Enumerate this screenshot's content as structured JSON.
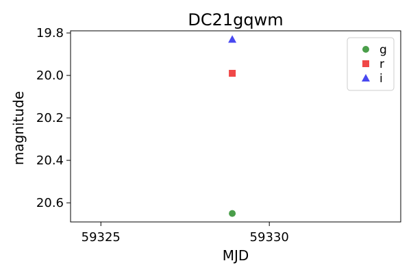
{
  "chart_data": {
    "type": "scatter",
    "title": "DC21gqwm",
    "xlabel": "MJD",
    "ylabel": "magnitude",
    "xlim": [
      59324.1,
      59333.9
    ],
    "ylim": [
      20.69,
      19.79
    ],
    "y_inverted": true,
    "grid": false,
    "legend_position": "top-right",
    "x_ticks": [
      59325,
      59330
    ],
    "y_ticks": [
      19.8,
      20.0,
      20.2,
      20.4,
      20.6
    ],
    "series": [
      {
        "name": "g",
        "color": "#4a9e4a",
        "marker": "circle",
        "points": [
          [
            59328.9,
            20.65
          ]
        ]
      },
      {
        "name": "r",
        "color": "#f04848",
        "marker": "square",
        "points": [
          [
            59328.9,
            19.99
          ]
        ]
      },
      {
        "name": "i",
        "color": "#4848f0",
        "marker": "triangle",
        "points": [
          [
            59328.9,
            19.83
          ]
        ]
      }
    ]
  }
}
